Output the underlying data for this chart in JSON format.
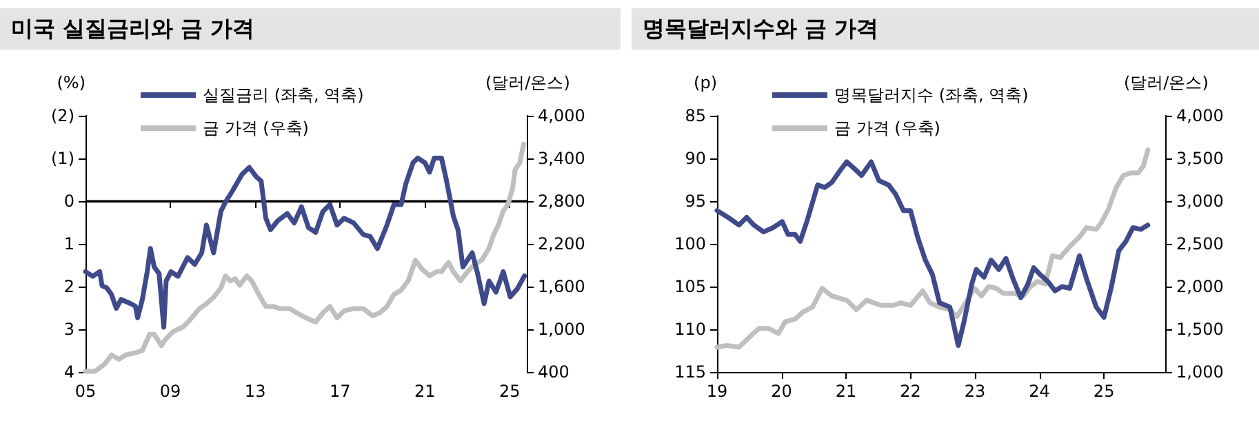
{
  "chart_data": [
    {
      "type": "line",
      "title": "미국 실질금리와 금 가격",
      "ylabel": "(%)",
      "y2label": "(달러/온스)",
      "legend": "top left",
      "grid": false,
      "marker": "none",
      "line_style": "solid",
      "xlim": [
        2005,
        2025.8
      ],
      "xticks": [
        {
          "value": 2005,
          "label": "05"
        },
        {
          "value": 2009,
          "label": "09"
        },
        {
          "value": 2013,
          "label": "13"
        },
        {
          "value": 2017,
          "label": "17"
        },
        {
          "value": 2021,
          "label": "21"
        },
        {
          "value": 2025,
          "label": "25"
        }
      ],
      "ylim": [
        4,
        -2
      ],
      "yticks": [
        {
          "value": -2,
          "label": "(2)"
        },
        {
          "value": -1,
          "label": "(1)"
        },
        0,
        1,
        2,
        3,
        4
      ],
      "y2lim": [
        400,
        4000
      ],
      "y2ticks": [
        {
          "value": 400,
          "label": "400"
        },
        {
          "value": 1000,
          "label": "1,000"
        },
        {
          "value": 1600,
          "label": "1,600"
        },
        {
          "value": 2200,
          "label": "2,200"
        },
        {
          "value": 2800,
          "label": "2,800"
        },
        {
          "value": 3400,
          "label": "3,400"
        },
        {
          "value": 4000,
          "label": "4,000"
        }
      ],
      "ref_lines": [
        {
          "axis": "y",
          "value": 0,
          "label": null,
          "color": "#000000"
        }
      ],
      "series": [
        {
          "name": "실질금리 (좌축, 역축)",
          "color": "#3f4a8a",
          "x": [
            2005.0,
            2005.34,
            2005.67,
            2005.78,
            2006.0,
            2006.23,
            2006.45,
            2006.68,
            2006.9,
            2007.13,
            2007.35,
            2007.46,
            2007.68,
            2007.91,
            2008.06,
            2008.24,
            2008.47,
            2008.69,
            2008.8,
            2009.03,
            2009.36,
            2009.81,
            2010.15,
            2010.48,
            2010.7,
            2011.04,
            2011.38,
            2011.6,
            2011.94,
            2012.38,
            2012.72,
            2013.05,
            2013.28,
            2013.5,
            2013.72,
            2014.06,
            2014.51,
            2014.84,
            2015.18,
            2015.51,
            2015.85,
            2016.19,
            2016.52,
            2016.86,
            2017.19,
            2017.64,
            2018.09,
            2018.42,
            2018.76,
            2019.21,
            2019.54,
            2019.88,
            2020.1,
            2020.44,
            2020.66,
            2021.0,
            2021.22,
            2021.44,
            2021.78,
            2022.0,
            2022.34,
            2022.56,
            2022.79,
            2023.23,
            2023.46,
            2023.79,
            2024.02,
            2024.35,
            2024.69,
            2025.02,
            2025.36,
            2025.69
          ],
          "values": [
            1.65,
            1.76,
            1.65,
            1.98,
            2.03,
            2.19,
            2.51,
            2.3,
            2.35,
            2.4,
            2.46,
            2.73,
            2.3,
            1.65,
            1.11,
            1.54,
            1.7,
            2.95,
            1.87,
            1.65,
            1.76,
            1.32,
            1.48,
            1.21,
            0.56,
            1.21,
            0.24,
            0.02,
            -0.25,
            -0.63,
            -0.79,
            -0.57,
            -0.47,
            0.4,
            0.67,
            0.46,
            0.29,
            0.51,
            0.13,
            0.62,
            0.73,
            0.24,
            0.08,
            0.56,
            0.4,
            0.51,
            0.78,
            0.83,
            1.11,
            0.56,
            0.08,
            0.08,
            -0.41,
            -0.9,
            -1.01,
            -0.9,
            -0.68,
            -1.01,
            -1.01,
            -0.52,
            0.35,
            0.67,
            1.54,
            1.21,
            1.65,
            2.4,
            1.87,
            2.13,
            1.65,
            2.24,
            2.05,
            1.75
          ]
        },
        {
          "name": "금 가격 (우축)",
          "color": "#bfbfbf",
          "axis": "y2",
          "x": [
            2005.0,
            2005.45,
            2005.9,
            2006.23,
            2006.57,
            2006.9,
            2007.35,
            2007.68,
            2008.02,
            2008.24,
            2008.58,
            2008.8,
            2009.14,
            2009.59,
            2009.92,
            2010.37,
            2010.7,
            2011.04,
            2011.38,
            2011.6,
            2011.82,
            2012.05,
            2012.27,
            2012.6,
            2012.83,
            2013.17,
            2013.5,
            2013.84,
            2014.17,
            2014.62,
            2014.96,
            2015.4,
            2015.85,
            2016.19,
            2016.52,
            2016.86,
            2017.19,
            2017.64,
            2018.09,
            2018.53,
            2018.87,
            2019.21,
            2019.54,
            2019.88,
            2020.21,
            2020.55,
            2020.88,
            2021.22,
            2021.55,
            2021.78,
            2022.11,
            2022.34,
            2022.67,
            2023.01,
            2023.34,
            2023.68,
            2024.02,
            2024.24,
            2024.46,
            2024.69,
            2024.91,
            2025.13,
            2025.25,
            2025.47,
            2025.65
          ],
          "values": [
            410,
            410,
            510,
            640,
            580,
            640,
            670,
            700,
            930,
            930,
            770,
            870,
            970,
            1030,
            1130,
            1290,
            1360,
            1450,
            1580,
            1750,
            1680,
            1710,
            1620,
            1750,
            1680,
            1490,
            1320,
            1320,
            1290,
            1290,
            1230,
            1160,
            1100,
            1230,
            1320,
            1160,
            1260,
            1290,
            1290,
            1190,
            1230,
            1320,
            1490,
            1550,
            1680,
            1970,
            1840,
            1750,
            1810,
            1810,
            1940,
            1810,
            1680,
            1810,
            1910,
            1970,
            2140,
            2330,
            2460,
            2660,
            2750,
            2980,
            3240,
            3340,
            3600
          ]
        }
      ]
    },
    {
      "type": "line",
      "title": "명목달러지수와 금 가격",
      "ylabel": "(p)",
      "y2label": "(달러/온스)",
      "legend": "top left",
      "grid": false,
      "marker": "none",
      "line_style": "solid",
      "xlim": [
        2019,
        2025.95
      ],
      "xticks": [
        {
          "value": 2019,
          "label": "19"
        },
        {
          "value": 2020,
          "label": "20"
        },
        {
          "value": 2021,
          "label": "21"
        },
        {
          "value": 2022,
          "label": "22"
        },
        {
          "value": 2023,
          "label": "23"
        },
        {
          "value": 2024,
          "label": "24"
        },
        {
          "value": 2025,
          "label": "25"
        }
      ],
      "ylim": [
        115,
        85
      ],
      "yticks": [
        85,
        90,
        95,
        100,
        105,
        110,
        115
      ],
      "y2lim": [
        1000,
        4000
      ],
      "y2ticks": [
        {
          "value": 1000,
          "label": "1,000"
        },
        {
          "value": 1500,
          "label": "1,500"
        },
        {
          "value": 2000,
          "label": "2,000"
        },
        {
          "value": 2500,
          "label": "2,500"
        },
        {
          "value": 3000,
          "label": "3,000"
        },
        {
          "value": 3500,
          "label": "3,500"
        },
        {
          "value": 4000,
          "label": "4,000"
        }
      ],
      "series": [
        {
          "name": "명목달러지수 (좌축, 역축)",
          "color": "#3f4a8a",
          "x": [
            2019.0,
            2019.19,
            2019.34,
            2019.46,
            2019.57,
            2019.72,
            2019.87,
            2020.01,
            2020.1,
            2020.21,
            2020.29,
            2020.4,
            2020.56,
            2020.67,
            2020.78,
            2020.9,
            2021.01,
            2021.13,
            2021.24,
            2021.39,
            2021.51,
            2021.66,
            2021.77,
            2021.89,
            2022.0,
            2022.11,
            2022.23,
            2022.34,
            2022.45,
            2022.61,
            2022.74,
            2022.83,
            2022.95,
            2023.02,
            2023.14,
            2023.25,
            2023.37,
            2023.48,
            2023.59,
            2023.71,
            2023.82,
            2023.91,
            2024.01,
            2024.13,
            2024.24,
            2024.35,
            2024.47,
            2024.62,
            2024.73,
            2024.88,
            2025.0,
            2025.11,
            2025.23,
            2025.34,
            2025.45,
            2025.57,
            2025.68
          ],
          "values": [
            96.1,
            97.0,
            97.8,
            96.9,
            97.8,
            98.6,
            98.1,
            97.4,
            98.9,
            98.9,
            99.7,
            97.2,
            93.1,
            93.4,
            92.8,
            91.5,
            90.4,
            91.2,
            92.0,
            90.4,
            92.6,
            93.1,
            94.2,
            96.1,
            96.1,
            99.2,
            101.9,
            103.6,
            106.9,
            107.4,
            111.9,
            109.1,
            104.7,
            103.0,
            103.9,
            101.9,
            103.0,
            101.7,
            104.1,
            106.3,
            104.7,
            102.8,
            103.6,
            104.4,
            105.5,
            105.0,
            105.2,
            101.4,
            104.1,
            107.4,
            108.6,
            105.2,
            100.8,
            99.7,
            98.1,
            98.3,
            97.8
          ]
        },
        {
          "name": "금 가격 (우축)",
          "color": "#bfbfbf",
          "axis": "y2",
          "x": [
            2019.0,
            2019.15,
            2019.34,
            2019.49,
            2019.65,
            2019.8,
            2019.95,
            2020.06,
            2020.21,
            2020.33,
            2020.48,
            2020.63,
            2020.78,
            2021.01,
            2021.16,
            2021.32,
            2021.54,
            2021.73,
            2021.85,
            2022.0,
            2022.19,
            2022.3,
            2022.45,
            2022.61,
            2022.72,
            2022.83,
            2022.99,
            2023.1,
            2023.21,
            2023.33,
            2023.44,
            2023.59,
            2023.75,
            2023.86,
            2023.97,
            2024.09,
            2024.2,
            2024.32,
            2024.47,
            2024.62,
            2024.73,
            2024.88,
            2024.96,
            2025.07,
            2025.19,
            2025.3,
            2025.42,
            2025.53,
            2025.61,
            2025.68
          ],
          "values": [
            1290,
            1310,
            1290,
            1400,
            1510,
            1510,
            1450,
            1590,
            1620,
            1700,
            1760,
            1980,
            1890,
            1840,
            1730,
            1840,
            1780,
            1780,
            1810,
            1780,
            1950,
            1810,
            1760,
            1730,
            1650,
            1780,
            1980,
            1890,
            2000,
            1980,
            1920,
            1920,
            1890,
            2000,
            2060,
            2030,
            2360,
            2340,
            2470,
            2580,
            2690,
            2670,
            2750,
            2910,
            3160,
            3300,
            3330,
            3330,
            3410,
            3600
          ]
        }
      ]
    }
  ]
}
